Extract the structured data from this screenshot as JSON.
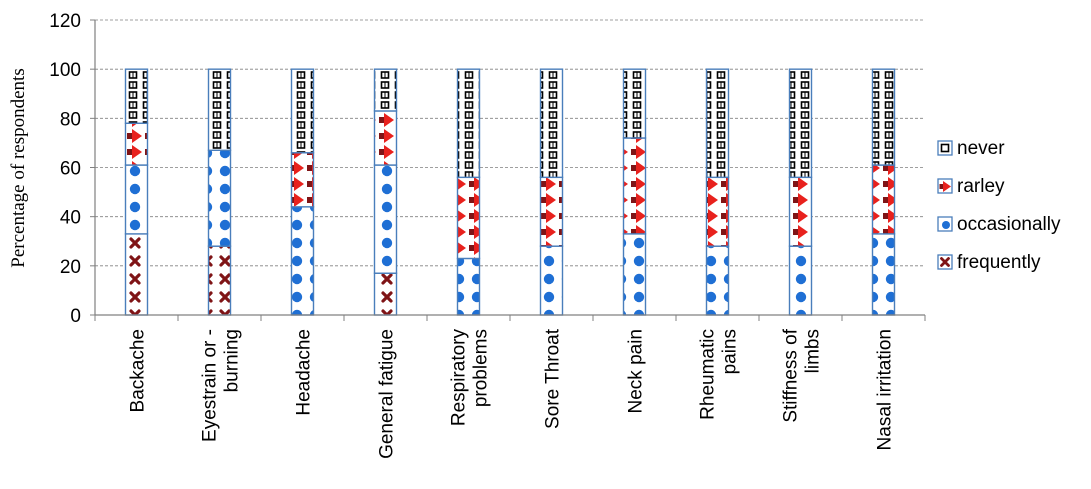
{
  "chart_data": {
    "type": "bar",
    "stacked": true,
    "ylabel": "Percentage of respondents",
    "xlabel": "",
    "ylim": [
      0,
      120
    ],
    "yticks": [
      0,
      20,
      40,
      60,
      80,
      100,
      120
    ],
    "grid": true,
    "legend_position": "right",
    "categories": [
      "Backache",
      "Eyestrain or - burning",
      "Headache",
      "General fatigue",
      "Respiratory problems",
      "Sore Throat",
      "Neck pain",
      "Rheumatic pains",
      "Stiffness of limbs",
      "Nasal irritation"
    ],
    "category_label_lines": [
      [
        "Backache"
      ],
      [
        "Eyestrain or -",
        "burning"
      ],
      [
        "Headache"
      ],
      [
        "General fatigue"
      ],
      [
        "Respiratory",
        "problems"
      ],
      [
        "Sore Throat"
      ],
      [
        "Neck pain"
      ],
      [
        "Rheumatic",
        "pains"
      ],
      [
        "Stiffness of",
        "limbs"
      ],
      [
        "Nasal irritation"
      ]
    ],
    "series": [
      {
        "name": "frequently",
        "values": [
          33,
          28,
          0,
          17,
          0,
          0,
          0,
          0,
          0,
          0
        ]
      },
      {
        "name": "occasionally",
        "values": [
          28,
          39,
          44,
          44,
          23,
          28,
          33,
          28,
          28,
          33
        ]
      },
      {
        "name": "rarley",
        "values": [
          17,
          0,
          22,
          22,
          33,
          28,
          39,
          28,
          28,
          28
        ]
      },
      {
        "name": "never",
        "values": [
          22,
          33,
          34,
          17,
          44,
          44,
          28,
          44,
          44,
          39
        ]
      }
    ],
    "legend_order": [
      "never",
      "rarley",
      "occasionally",
      "frequently"
    ],
    "colors": {
      "frame": "#4a7ebb",
      "frequently": "#7f1416",
      "occasionally": "#1f6fd4",
      "rarley": "#e8211d",
      "never": "#000000",
      "grid": "#808080",
      "axis": "#808080"
    }
  }
}
